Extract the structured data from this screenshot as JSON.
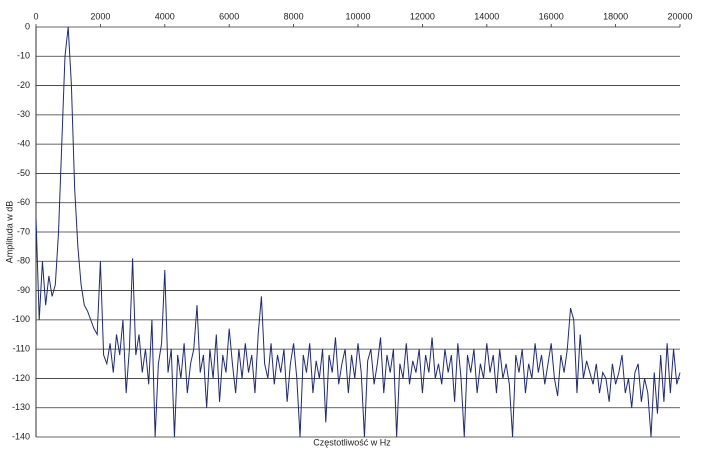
{
  "chart_data": {
    "type": "line",
    "xlabel": "Częstotliwość w Hz",
    "ylabel": "Amplituda w dB",
    "color": "#1f2a78",
    "grid": true,
    "xlim": [
      0,
      20000
    ],
    "xticks": [
      0,
      2000,
      4000,
      6000,
      8000,
      10000,
      12000,
      14000,
      16000,
      18000,
      20000
    ],
    "ylim": [
      -140,
      0
    ],
    "yticks": [
      0,
      -10,
      -20,
      -30,
      -40,
      -50,
      -60,
      -70,
      -80,
      -90,
      -100,
      -110,
      -120,
      -130,
      -140
    ],
    "x": [
      0,
      100,
      200,
      300,
      400,
      500,
      600,
      700,
      800,
      900,
      1000,
      1100,
      1200,
      1300,
      1400,
      1500,
      1600,
      1700,
      1800,
      1900,
      2000,
      2100,
      2200,
      2300,
      2400,
      2500,
      2600,
      2700,
      2800,
      2900,
      3000,
      3100,
      3200,
      3300,
      3400,
      3500,
      3600,
      3700,
      3800,
      3900,
      4000,
      4100,
      4200,
      4300,
      4400,
      4500,
      4600,
      4700,
      4800,
      4900,
      5000,
      5100,
      5200,
      5300,
      5400,
      5500,
      5600,
      5700,
      5800,
      5900,
      6000,
      6100,
      6200,
      6300,
      6400,
      6500,
      6600,
      6700,
      6800,
      6900,
      7000,
      7100,
      7200,
      7300,
      7400,
      7500,
      7600,
      7700,
      7800,
      7900,
      8000,
      8100,
      8200,
      8300,
      8400,
      8500,
      8600,
      8700,
      8800,
      8900,
      9000,
      9100,
      9200,
      9300,
      9400,
      9500,
      9600,
      9700,
      9800,
      9900,
      10000,
      10100,
      10200,
      10300,
      10400,
      10500,
      10600,
      10700,
      10800,
      10900,
      11000,
      11100,
      11200,
      11300,
      11400,
      11500,
      11600,
      11700,
      11800,
      11900,
      12000,
      12100,
      12200,
      12300,
      12400,
      12500,
      12600,
      12700,
      12800,
      12900,
      13000,
      13100,
      13200,
      13300,
      13400,
      13500,
      13600,
      13700,
      13800,
      13900,
      14000,
      14100,
      14200,
      14300,
      14400,
      14500,
      14600,
      14700,
      14800,
      14900,
      15000,
      15100,
      15200,
      15300,
      15400,
      15500,
      15600,
      15700,
      15800,
      15900,
      16000,
      16100,
      16200,
      16300,
      16400,
      16500,
      16600,
      16700,
      16800,
      16900,
      17000,
      17100,
      17200,
      17300,
      17400,
      17500,
      17600,
      17700,
      17800,
      17900,
      18000,
      18100,
      18200,
      18300,
      18400,
      18500,
      18600,
      18700,
      18800,
      18900,
      19000,
      19100,
      19200,
      19300,
      19400,
      19500,
      19600,
      19700,
      19800,
      19900,
      20000
    ],
    "values": [
      -65,
      -100,
      -80,
      -95,
      -85,
      -92,
      -88,
      -70,
      -40,
      -10,
      0,
      -20,
      -55,
      -75,
      -88,
      -95,
      -97,
      -100,
      -103,
      -105,
      -80,
      -112,
      -115,
      -108,
      -118,
      -105,
      -112,
      -100,
      -125,
      -110,
      -79,
      -112,
      -105,
      -118,
      -110,
      -122,
      -100,
      -140,
      -115,
      -108,
      -83,
      -118,
      -110,
      -140,
      -112,
      -120,
      -108,
      -125,
      -115,
      -110,
      -95,
      -118,
      -112,
      -130,
      -110,
      -120,
      -105,
      -128,
      -112,
      -118,
      -103,
      -115,
      -125,
      -110,
      -120,
      -108,
      -118,
      -112,
      -125,
      -105,
      -92,
      -115,
      -120,
      -108,
      -122,
      -112,
      -118,
      -110,
      -128,
      -115,
      -108,
      -120,
      -140,
      -112,
      -118,
      -108,
      -125,
      -114,
      -120,
      -110,
      -135,
      -112,
      -118,
      -106,
      -122,
      -115,
      -110,
      -125,
      -112,
      -120,
      -108,
      -118,
      -140,
      -114,
      -110,
      -122,
      -115,
      -106,
      -125,
      -112,
      -118,
      -110,
      -140,
      -115,
      -120,
      -108,
      -122,
      -114,
      -118,
      -110,
      -125,
      -112,
      -118,
      -106,
      -120,
      -115,
      -122,
      -110,
      -118,
      -112,
      -128,
      -108,
      -120,
      -140,
      -112,
      -118,
      -110,
      -125,
      -115,
      -120,
      -108,
      -118,
      -112,
      -125,
      -110,
      -120,
      -115,
      -122,
      -140,
      -112,
      -118,
      -110,
      -125,
      -115,
      -120,
      -108,
      -118,
      -112,
      -122,
      -115,
      -108,
      -120,
      -126,
      -112,
      -118,
      -110,
      -96,
      -100,
      -125,
      -105,
      -120,
      -114,
      -118,
      -122,
      -115,
      -125,
      -118,
      -120,
      -128,
      -115,
      -122,
      -118,
      -112,
      -125,
      -120,
      -130,
      -118,
      -115,
      -128,
      -120,
      -125,
      -140,
      -118,
      -132,
      -112,
      -128,
      -108,
      -125,
      -110,
      -122,
      -118
    ]
  }
}
